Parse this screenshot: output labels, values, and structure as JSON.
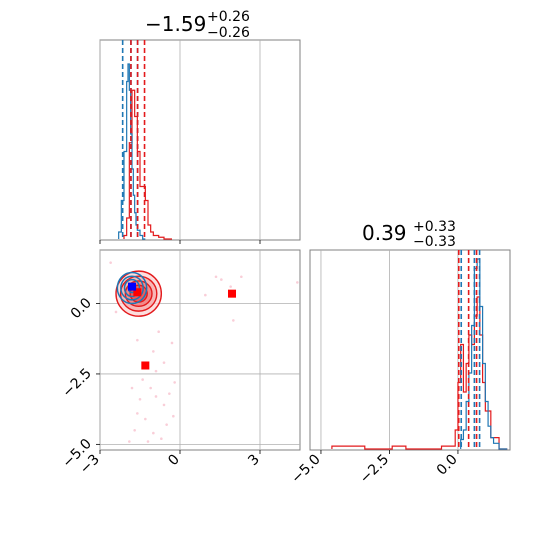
{
  "chart_data": {
    "type": "corner",
    "colors": {
      "blue": "#1f77b4",
      "red": "#e31a1c",
      "grid": "#b0b0b0",
      "axes": "#808080"
    },
    "titles": [
      {
        "value": "−1.59",
        "plus": "+0.26",
        "minus": "−0.26"
      },
      {
        "value": "0.39",
        "plus": "+0.33",
        "minus": "−0.33"
      }
    ],
    "x_param1": {
      "range": [
        -3.0,
        4.5
      ],
      "ticks": [
        -3,
        0,
        3
      ],
      "tick_labels": [
        "−3",
        "0",
        "3"
      ]
    },
    "x_param2": {
      "range": [
        -5.4,
        1.9
      ],
      "ticks": [
        -5.0,
        -2.5,
        0.0
      ],
      "tick_labels": [
        "−5.0",
        "−2.5",
        "0.0"
      ]
    },
    "y_param2": {
      "range": [
        -5.2,
        1.9
      ],
      "ticks": [
        0.0,
        -2.5,
        -5.0
      ],
      "tick_labels": [
        "0.0",
        "−2.5",
        "−5.0"
      ]
    },
    "hist1": {
      "blue_quantiles": [
        -2.15,
        -1.84,
        -1.59
      ],
      "red_quantiles": [
        -1.84,
        -1.59,
        -1.33
      ],
      "blue": {
        "edges": [
          -2.3,
          -2.2,
          -2.1,
          -2.0,
          -1.95,
          -1.9,
          -1.85,
          -1.8,
          -1.75,
          -1.7,
          -1.65,
          -1.6,
          -1.5,
          -1.4,
          -1.3
        ],
        "counts": [
          0.04,
          0.22,
          0.5,
          0.9,
          1.0,
          0.85,
          0.6,
          0.4,
          0.25,
          0.15,
          0.08,
          0.05,
          0.02,
          0.0
        ]
      },
      "red": {
        "edges": [
          -2.1,
          -2.0,
          -1.9,
          -1.8,
          -1.7,
          -1.6,
          -1.5,
          -1.4,
          -1.3,
          -1.2,
          -1.1,
          -1.0,
          -0.8,
          -0.6,
          -0.3
        ],
        "counts": [
          0.02,
          0.12,
          0.55,
          0.85,
          0.7,
          0.5,
          0.3,
          0.3,
          0.22,
          0.08,
          0.04,
          0.02,
          0.01,
          0.0
        ]
      }
    },
    "hist2": {
      "blue_quantiles": [
        0.12,
        0.6,
        0.79
      ],
      "red_quantiles": [
        0.03,
        0.39,
        0.68
      ],
      "blue": {
        "edges": [
          0.1,
          0.2,
          0.3,
          0.4,
          0.5,
          0.6,
          0.7,
          0.8,
          0.9,
          1.0,
          1.1,
          1.2,
          1.3,
          1.5,
          1.8
        ],
        "counts": [
          0.05,
          0.1,
          0.25,
          0.4,
          0.65,
          0.95,
          1.0,
          0.75,
          0.45,
          0.25,
          0.12,
          0.06,
          0.03,
          0.0
        ]
      },
      "red": {
        "edges": [
          -4.6,
          -3.9,
          -3.4,
          -2.4,
          -1.9,
          -0.6,
          -0.1,
          0.0,
          0.1,
          0.2,
          0.3,
          0.4,
          0.5,
          0.6,
          0.7,
          0.8,
          0.9,
          1.0,
          1.2,
          1.5,
          1.8
        ],
        "counts": [
          0.015,
          0.015,
          0.0,
          0.015,
          0.0,
          0.015,
          0.1,
          0.35,
          0.55,
          0.3,
          0.45,
          0.6,
          0.55,
          0.7,
          0.8,
          0.6,
          0.35,
          0.2,
          0.06,
          0.0
        ]
      }
    },
    "joint": {
      "blue_center": [
        -1.8,
        0.55
      ],
      "red_center": [
        -1.55,
        0.35
      ],
      "blue_contour_radii": [
        [
          0.55,
          0.55
        ],
        [
          0.42,
          0.42
        ],
        [
          0.28,
          0.3
        ],
        [
          0.14,
          0.16
        ]
      ],
      "red_contour_radii": [
        [
          0.85,
          0.8
        ],
        [
          0.68,
          0.62
        ],
        [
          0.5,
          0.45
        ],
        [
          0.32,
          0.3
        ]
      ],
      "markers_red": [
        [
          -1.6,
          0.4
        ],
        [
          1.95,
          0.35
        ],
        [
          -1.3,
          -2.2
        ]
      ],
      "markers_blue": [
        [
          -1.8,
          0.6
        ]
      ],
      "scatter": [
        [
          -0.2,
          -2.8
        ],
        [
          -0.6,
          -3.6
        ],
        [
          -1.1,
          -3.0
        ],
        [
          -1.3,
          -4.1
        ],
        [
          -1.7,
          -4.5
        ],
        [
          -0.9,
          -2.4
        ],
        [
          -0.4,
          -3.2
        ],
        [
          -1.0,
          -1.7
        ],
        [
          -1.5,
          -3.4
        ],
        [
          -0.7,
          -4.8
        ],
        [
          -1.2,
          -4.9
        ],
        [
          0.95,
          0.3
        ],
        [
          1.35,
          0.95
        ],
        [
          1.55,
          0.85
        ],
        [
          1.9,
          0.6
        ],
        [
          2.0,
          -0.6
        ],
        [
          2.3,
          0.95
        ],
        [
          -0.3,
          -1.4
        ],
        [
          -0.8,
          -1.0
        ],
        [
          -1.4,
          -2.7
        ],
        [
          -1.6,
          -3.9
        ],
        [
          -0.5,
          -4.3
        ],
        [
          -1.9,
          -4.9
        ],
        [
          -1.0,
          -4.6
        ],
        [
          -0.25,
          -4.0
        ],
        [
          -0.9,
          -3.3
        ],
        [
          -1.8,
          -3.0
        ],
        [
          -0.6,
          -2.1
        ],
        [
          4.4,
          0.75
        ],
        [
          -2.6,
          1.45
        ],
        [
          -2.4,
          -0.3
        ],
        [
          -1.6,
          -1.3
        ]
      ]
    }
  }
}
